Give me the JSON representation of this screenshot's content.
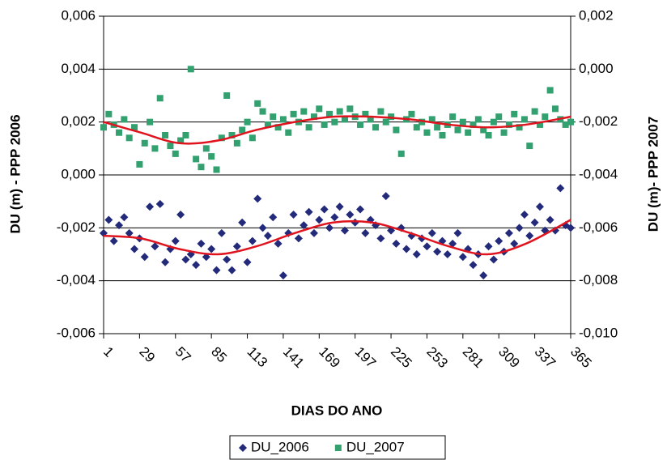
{
  "chart_data": {
    "type": "scatter",
    "x_label": "DIAS DO ANO",
    "y_label": "DU (m) - PPP 2006",
    "y2_label": "DU (m)- PPP 2007",
    "xlim": [
      1,
      365
    ],
    "xticks": [
      1,
      29,
      57,
      85,
      113,
      141,
      169,
      197,
      225,
      253,
      281,
      309,
      337,
      365
    ],
    "ylim": [
      -0.006,
      0.006
    ],
    "yticks": [
      {
        "value": -0.006,
        "label": "-0,006"
      },
      {
        "value": -0.004,
        "label": "-0,004"
      },
      {
        "value": -0.002,
        "label": "-0,002"
      },
      {
        "value": 0,
        "label": "0,000"
      },
      {
        "value": 0.002,
        "label": "0,002"
      },
      {
        "value": 0.004,
        "label": "0,004"
      },
      {
        "value": 0.006,
        "label": "0,006"
      }
    ],
    "y2lim": [
      -0.01,
      0.002
    ],
    "y2ticks": [
      {
        "value": -0.01,
        "label": "-0,010"
      },
      {
        "value": -0.008,
        "label": "-0,008"
      },
      {
        "value": -0.006,
        "label": "-0,006"
      },
      {
        "value": -0.004,
        "label": "-0,004"
      },
      {
        "value": -0.002,
        "label": "-0,002"
      },
      {
        "value": 0,
        "label": "0,000"
      },
      {
        "value": 0.002,
        "label": "0,002"
      }
    ],
    "grid": true,
    "legend": "bottom",
    "x": [
      1,
      5,
      9,
      13,
      17,
      21,
      25,
      29,
      33,
      37,
      41,
      45,
      49,
      53,
      57,
      61,
      65,
      69,
      73,
      77,
      81,
      85,
      89,
      93,
      97,
      101,
      105,
      109,
      113,
      117,
      121,
      125,
      129,
      133,
      137,
      141,
      145,
      149,
      153,
      157,
      161,
      165,
      169,
      173,
      177,
      181,
      185,
      189,
      193,
      197,
      201,
      205,
      209,
      213,
      217,
      221,
      225,
      229,
      233,
      237,
      241,
      245,
      249,
      253,
      257,
      261,
      265,
      269,
      273,
      277,
      281,
      285,
      289,
      293,
      297,
      301,
      305,
      309,
      313,
      317,
      321,
      325,
      329,
      333,
      337,
      341,
      345,
      349,
      353,
      357,
      361,
      365
    ],
    "series": [
      {
        "name": "DU_2006",
        "color": "#232a7a",
        "marker": "diamond",
        "values": [
          -0.0022,
          -0.0017,
          -0.0025,
          -0.0019,
          -0.0016,
          -0.0022,
          -0.0028,
          -0.0024,
          -0.0031,
          -0.0012,
          -0.0027,
          -0.0011,
          -0.0033,
          -0.0028,
          -0.0025,
          -0.0015,
          -0.0032,
          -0.003,
          -0.0034,
          -0.0026,
          -0.0031,
          -0.0028,
          -0.0036,
          -0.0022,
          -0.0032,
          -0.0036,
          -0.0027,
          -0.0018,
          -0.0033,
          -0.0025,
          -0.0009,
          -0.002,
          -0.0023,
          -0.0016,
          -0.0026,
          -0.0038,
          -0.0022,
          -0.0015,
          -0.0024,
          -0.0019,
          -0.0014,
          -0.0022,
          -0.0017,
          -0.0013,
          -0.002,
          -0.0016,
          -0.0012,
          -0.0021,
          -0.0015,
          -0.0018,
          -0.0013,
          -0.0022,
          -0.0017,
          -0.0019,
          -0.0024,
          -0.0008,
          -0.0021,
          -0.0026,
          -0.002,
          -0.0028,
          -0.0023,
          -0.003,
          -0.0024,
          -0.0027,
          -0.0022,
          -0.0029,
          -0.0025,
          -0.003,
          -0.0026,
          -0.0022,
          -0.0031,
          -0.0028,
          -0.0034,
          -0.003,
          -0.0038,
          -0.0027,
          -0.0032,
          -0.0025,
          -0.0029,
          -0.0022,
          -0.0026,
          -0.002,
          -0.0015,
          -0.0023,
          -0.0018,
          -0.0012,
          -0.0021,
          -0.0017,
          -0.0021,
          -0.0005,
          -0.0019,
          -0.002
        ]
      },
      {
        "name": "DU_2007",
        "color": "#33a070",
        "marker": "square",
        "axis": "y2",
        "values": [
          -0.0022,
          -0.0017,
          -0.0021,
          -0.0024,
          -0.0019,
          -0.0026,
          -0.0022,
          -0.0036,
          -0.0028,
          -0.002,
          -0.003,
          -0.0011,
          -0.0025,
          -0.0029,
          -0.0032,
          -0.0027,
          -0.0025,
          0.0,
          -0.0034,
          -0.0037,
          -0.003,
          -0.0033,
          -0.0038,
          -0.0026,
          -0.001,
          -0.0025,
          -0.0028,
          -0.0023,
          -0.002,
          -0.0026,
          -0.0013,
          -0.0016,
          -0.0021,
          -0.0018,
          -0.0022,
          -0.0019,
          -0.0024,
          -0.0017,
          -0.002,
          -0.0016,
          -0.0022,
          -0.0018,
          -0.0015,
          -0.0021,
          -0.0017,
          -0.002,
          -0.0016,
          -0.0019,
          -0.0015,
          -0.0018,
          -0.0021,
          -0.0017,
          -0.0019,
          -0.0022,
          -0.0016,
          -0.002,
          -0.0018,
          -0.0023,
          -0.0032,
          -0.0019,
          -0.0017,
          -0.0022,
          -0.002,
          -0.0024,
          -0.0019,
          -0.0022,
          -0.0025,
          -0.0021,
          -0.0018,
          -0.0023,
          -0.002,
          -0.0024,
          -0.0021,
          -0.0019,
          -0.0023,
          -0.0025,
          -0.002,
          -0.0018,
          -0.0024,
          -0.0021,
          -0.0017,
          -0.0022,
          -0.0019,
          -0.0029,
          -0.0016,
          -0.0021,
          -0.0018,
          -0.0008,
          -0.0015,
          -0.0019,
          -0.0021,
          -0.002
        ]
      }
    ],
    "trendlines": [
      {
        "color": "#e0141e",
        "x": [
          1,
          30,
          60,
          90,
          120,
          150,
          180,
          210,
          240,
          270,
          300,
          330,
          365
        ],
        "values": [
          -0.0023,
          -0.0024,
          -0.0028,
          -0.003,
          -0.0027,
          -0.0022,
          -0.0018,
          -0.0018,
          -0.0022,
          -0.0027,
          -0.003,
          -0.0026,
          -0.0017
        ]
      },
      {
        "color": "#e0141e",
        "axis": "y2",
        "x": [
          1,
          30,
          60,
          90,
          120,
          150,
          180,
          210,
          240,
          270,
          300,
          330,
          365
        ],
        "values": [
          -0.002,
          -0.0024,
          -0.0028,
          -0.0027,
          -0.0023,
          -0.002,
          -0.0018,
          -0.0018,
          -0.0019,
          -0.0021,
          -0.0022,
          -0.0021,
          -0.0018
        ]
      }
    ]
  }
}
